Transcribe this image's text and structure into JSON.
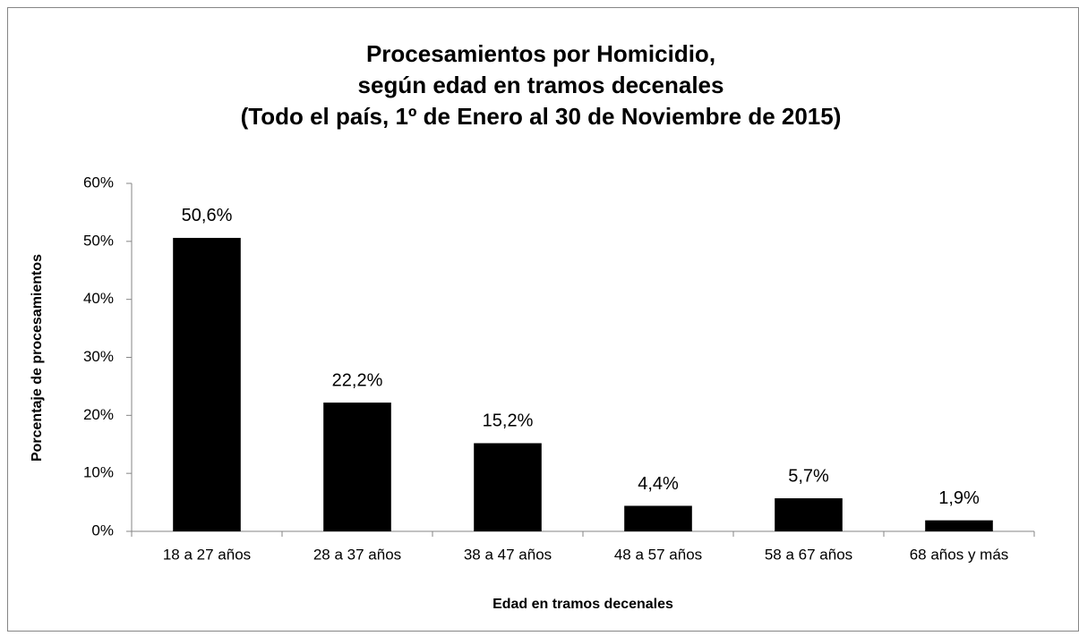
{
  "chart_data": {
    "type": "bar",
    "title": [
      "Procesamientos por Homicidio,",
      "según edad en tramos decenales",
      "(Todo el país, 1º de Enero al 30 de Noviembre de 2015)"
    ],
    "x_label": "Edad en tramos decenales",
    "y_label": "Porcentaje de procesamientos",
    "categories": [
      "18 a 27 años",
      "28 a 37 años",
      "38 a 47 años",
      "48 a 57 años",
      "58 a 67 años",
      "68 años y más"
    ],
    "values": [
      50.6,
      22.2,
      15.2,
      4.4,
      5.7,
      1.9
    ],
    "value_labels": [
      "50,6%",
      "22,2%",
      "15,2%",
      "4,4%",
      "5,7%",
      "1,9%"
    ],
    "color": "#000000",
    "ylim": [
      0,
      60
    ],
    "yticks": [
      {
        "value": 0,
        "label": "0%"
      },
      {
        "value": 10,
        "label": "10%"
      },
      {
        "value": 20,
        "label": "20%"
      },
      {
        "value": 30,
        "label": "30%"
      },
      {
        "value": 40,
        "label": "40%"
      },
      {
        "value": 50,
        "label": "50%"
      },
      {
        "value": 60,
        "label": "60%"
      }
    ],
    "grid": false
  }
}
